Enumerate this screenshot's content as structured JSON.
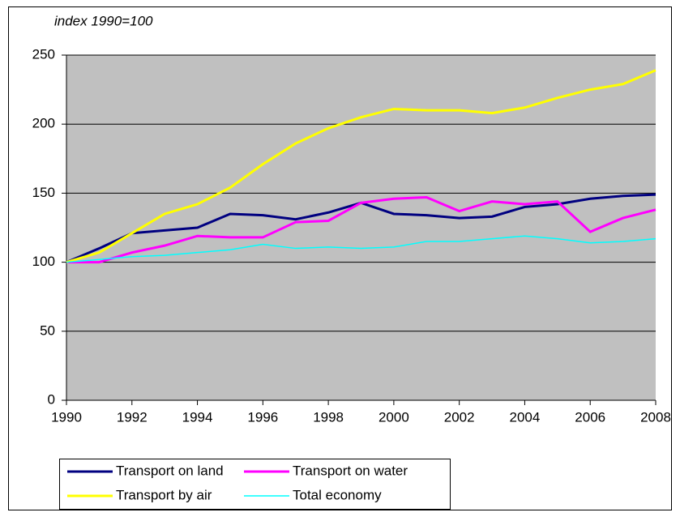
{
  "chart_data": {
    "type": "line",
    "subtitle": "index 1990=100",
    "x": [
      1990,
      1991,
      1992,
      1993,
      1994,
      1995,
      1996,
      1997,
      1998,
      1999,
      2000,
      2001,
      2002,
      2003,
      2004,
      2005,
      2006,
      2007,
      2008
    ],
    "xlim": [
      1990,
      2008
    ],
    "xticks": [
      1990,
      1992,
      1994,
      1996,
      1998,
      2000,
      2002,
      2004,
      2006,
      2008
    ],
    "ylim": [
      0,
      250
    ],
    "yticks": [
      0,
      50,
      100,
      150,
      200,
      250
    ],
    "grid": true,
    "legend": "bottom",
    "series": [
      {
        "name": "Transport on land",
        "color": "#000080",
        "values": [
          100,
          110,
          121,
          123,
          125,
          135,
          134,
          131,
          136,
          143,
          135,
          134,
          132,
          133,
          140,
          142,
          146,
          148,
          149
        ]
      },
      {
        "name": "Transport on water",
        "color": "#ff00ff",
        "values": [
          100,
          100,
          107,
          112,
          119,
          118,
          118,
          129,
          130,
          143,
          146,
          147,
          137,
          144,
          142,
          144,
          122,
          132,
          138
        ]
      },
      {
        "name": "Transport by air",
        "color": "#ffff00",
        "values": [
          100,
          107,
          121,
          135,
          142,
          154,
          171,
          186,
          197,
          205,
          211,
          210,
          210,
          208,
          212,
          219,
          225,
          229,
          239
        ]
      },
      {
        "name": "Total economy",
        "color": "#00ffff",
        "values": [
          100,
          102,
          104,
          105,
          107,
          109,
          113,
          110,
          111,
          110,
          111,
          115,
          115,
          117,
          119,
          117,
          114,
          115,
          117
        ]
      }
    ]
  }
}
